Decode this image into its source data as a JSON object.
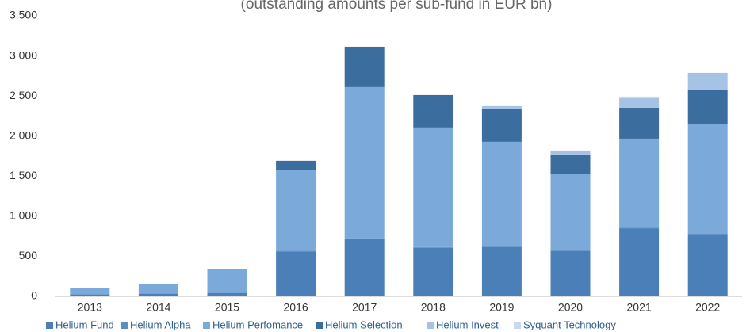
{
  "chart_data": {
    "type": "stacked-bar",
    "subtitle": "(outstanding amounts per sub-fund in EUR bn)",
    "categories": [
      "2013",
      "2014",
      "2015",
      "2016",
      "2017",
      "2018",
      "2019",
      "2020",
      "2021",
      "2022"
    ],
    "series": [
      {
        "name": "Helium Fund",
        "color": "#4a80b7",
        "values": [
          20,
          30,
          40,
          560,
          715,
          605,
          615,
          565,
          845,
          775
        ]
      },
      {
        "name": "Helium Alpha",
        "color": "#5b8fc4",
        "values": [
          5,
          5,
          5,
          10,
          10,
          10,
          10,
          10,
          10,
          10
        ]
      },
      {
        "name": "Helium Perfomance",
        "color": "#7aa9da",
        "values": [
          80,
          115,
          300,
          1005,
          1886,
          1492,
          1304,
          948,
          1113,
          1361
        ]
      },
      {
        "name": "Helium Selection",
        "color": "#3b6d9e",
        "values": [
          0,
          0,
          0,
          117,
          504,
          405,
          415,
          248,
          386,
          426
        ]
      },
      {
        "name": "Helium Invest",
        "color": "#a6c3e5",
        "values": [
          0,
          0,
          0,
          0,
          0,
          0,
          30,
          49,
          119,
          217
        ]
      },
      {
        "name": "Syquant Technology",
        "color": "#c8d9ee",
        "values": [
          0,
          0,
          0,
          0,
          0,
          0,
          0,
          0,
          20,
          0
        ]
      }
    ],
    "ylim": [
      0,
      3500
    ],
    "yticks": [
      0,
      500,
      {
        "value": 1000,
        "label": "1 000"
      },
      {
        "value": 1500,
        "label": "1 500"
      },
      {
        "value": 2000,
        "label": "2 000"
      },
      {
        "value": 2500,
        "label": "2 500"
      },
      {
        "value": 3000,
        "label": "3 000"
      },
      {
        "value": 3500,
        "label": "3 500"
      }
    ],
    "legend": "bottom"
  }
}
